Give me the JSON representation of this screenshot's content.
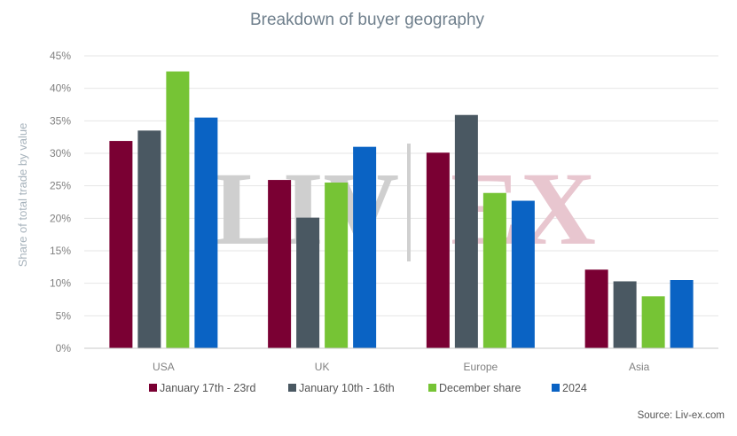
{
  "chart_data": {
    "type": "bar",
    "title": "Breakdown of buyer geography",
    "ylabel": "Share of total trade by value",
    "xlabel": "",
    "categories": [
      "USA",
      "UK",
      "Europe",
      "Asia"
    ],
    "series": [
      {
        "name": "January 17th - 23rd",
        "color": "#7a0033",
        "values": [
          31.9,
          25.9,
          30.1,
          12.1
        ]
      },
      {
        "name": "January 10th - 16th",
        "color": "#4a5862",
        "values": [
          33.5,
          20.1,
          35.9,
          10.3
        ]
      },
      {
        "name": "December share",
        "color": "#76c435",
        "values": [
          42.6,
          25.5,
          23.9,
          8.0
        ]
      },
      {
        "name": "2024",
        "color": "#0a63c4",
        "values": [
          35.5,
          31.0,
          22.7,
          10.5
        ]
      }
    ],
    "ylim": [
      0,
      45
    ],
    "yticks": [
      "0%",
      "5%",
      "10%",
      "15%",
      "20%",
      "25%",
      "30%",
      "35%",
      "40%",
      "45%"
    ],
    "grid": true,
    "legend_position": "bottom"
  },
  "watermark": {
    "left_text": "LIV",
    "right_text": "EX",
    "left_color": "#cfcfcf",
    "right_color": "#e8c6cf"
  },
  "source": "Source: Liv-ex.com"
}
